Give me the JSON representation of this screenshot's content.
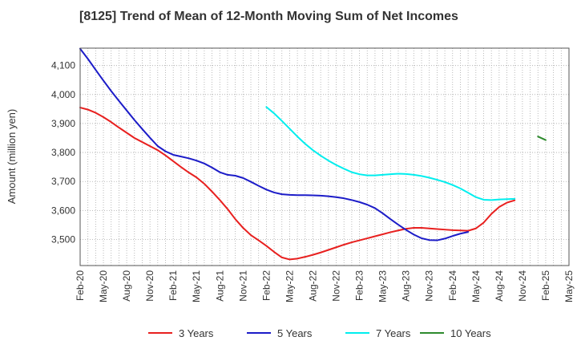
{
  "chart_data": {
    "type": "line",
    "title": "[8125]  Trend of Mean of 12-Month Moving Sum of Net Incomes",
    "xlabel": "",
    "ylabel": "Amount (million yen)",
    "ylim": [
      3410,
      4160
    ],
    "yticks": [
      3500,
      3600,
      3700,
      3800,
      3900,
      4000,
      4100
    ],
    "ytick_labels": [
      "3,500",
      "3,600",
      "3,700",
      "3,800",
      "3,900",
      "4,000",
      "4,100"
    ],
    "xlim": [
      "2020-02",
      "2025-05"
    ],
    "xtick_labels": [
      "Feb-20",
      "May-20",
      "Aug-20",
      "Nov-20",
      "Feb-21",
      "May-21",
      "Aug-21",
      "Nov-21",
      "Feb-22",
      "May-22",
      "Aug-22",
      "Nov-22",
      "Feb-23",
      "May-23",
      "Aug-23",
      "Nov-23",
      "Feb-24",
      "May-24",
      "Aug-24",
      "Nov-24",
      "Feb-25",
      "May-25"
    ],
    "grid": "dotted",
    "legend_position": "bottom",
    "series": [
      {
        "name": "3 Years",
        "color": "#e8201f",
        "start": "2020-02",
        "values": [
          3955,
          3948,
          3937,
          3922,
          3905,
          3886,
          3868,
          3850,
          3836,
          3822,
          3808,
          3790,
          3770,
          3750,
          3731,
          3714,
          3692,
          3665,
          3636,
          3605,
          3570,
          3540,
          3515,
          3497,
          3478,
          3457,
          3438,
          3431,
          3434,
          3440,
          3447,
          3455,
          3464,
          3473,
          3482,
          3490,
          3497,
          3504,
          3511,
          3518,
          3525,
          3531,
          3537,
          3540,
          3540,
          3538,
          3536,
          3534,
          3532,
          3531,
          3530,
          3538,
          3558,
          3588,
          3612,
          3627,
          3635
        ]
      },
      {
        "name": "5 Years",
        "color": "#1c1cc8",
        "start": "2020-02",
        "values": [
          4158,
          4123,
          4085,
          4048,
          4012,
          3978,
          3945,
          3912,
          3881,
          3851,
          3822,
          3804,
          3792,
          3786,
          3780,
          3772,
          3762,
          3748,
          3732,
          3723,
          3720,
          3712,
          3699,
          3685,
          3672,
          3662,
          3656,
          3654,
          3653,
          3653,
          3652,
          3651,
          3649,
          3646,
          3642,
          3636,
          3629,
          3620,
          3608,
          3590,
          3570,
          3551,
          3533,
          3517,
          3504,
          3498,
          3497,
          3503,
          3512,
          3520,
          3526
        ]
      },
      {
        "name": "7 Years",
        "color": "#00eeee",
        "start": "2022-02",
        "values": [
          3957,
          3935,
          3909,
          3882,
          3855,
          3830,
          3808,
          3789,
          3772,
          3757,
          3744,
          3732,
          3725,
          3721,
          3721,
          3723,
          3725,
          3727,
          3726,
          3723,
          3719,
          3713,
          3706,
          3698,
          3688,
          3676,
          3661,
          3646,
          3637,
          3636,
          3638,
          3639,
          3640
        ]
      },
      {
        "name": "10 Years",
        "color": "#2e8b2e",
        "start": "2025-01",
        "values": [
          3855,
          3843
        ]
      }
    ]
  }
}
